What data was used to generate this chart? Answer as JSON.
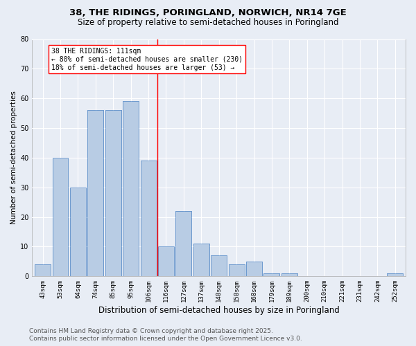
{
  "title1": "38, THE RIDINGS, PORINGLAND, NORWICH, NR14 7GE",
  "title2": "Size of property relative to semi-detached houses in Poringland",
  "xlabel": "Distribution of semi-detached houses by size in Poringland",
  "ylabel": "Number of semi-detached properties",
  "categories": [
    "43sqm",
    "53sqm",
    "64sqm",
    "74sqm",
    "85sqm",
    "95sqm",
    "106sqm",
    "116sqm",
    "127sqm",
    "137sqm",
    "148sqm",
    "158sqm",
    "168sqm",
    "179sqm",
    "189sqm",
    "200sqm",
    "210sqm",
    "221sqm",
    "231sqm",
    "242sqm",
    "252sqm"
  ],
  "values": [
    4,
    40,
    30,
    56,
    56,
    59,
    39,
    10,
    22,
    11,
    7,
    4,
    5,
    1,
    1,
    0,
    0,
    0,
    0,
    0,
    1
  ],
  "bar_color": "#b8cce4",
  "bar_edge_color": "#5b8ec9",
  "property_line_index": 7,
  "annotation_text_line1": "38 THE RIDINGS: 111sqm",
  "annotation_text_line2": "← 80% of semi-detached houses are smaller (230)",
  "annotation_text_line3": "18% of semi-detached houses are larger (53) →",
  "ylim": [
    0,
    80
  ],
  "yticks": [
    0,
    10,
    20,
    30,
    40,
    50,
    60,
    70,
    80
  ],
  "background_color": "#e8edf5",
  "plot_background_color": "#e8edf5",
  "grid_color": "#ffffff",
  "footer_line1": "Contains HM Land Registry data © Crown copyright and database right 2025.",
  "footer_line2": "Contains public sector information licensed under the Open Government Licence v3.0.",
  "title_fontsize": 9.5,
  "subtitle_fontsize": 8.5,
  "tick_fontsize": 6.5,
  "ylabel_fontsize": 7.5,
  "xlabel_fontsize": 8.5,
  "annotation_fontsize": 7,
  "footer_fontsize": 6.5
}
